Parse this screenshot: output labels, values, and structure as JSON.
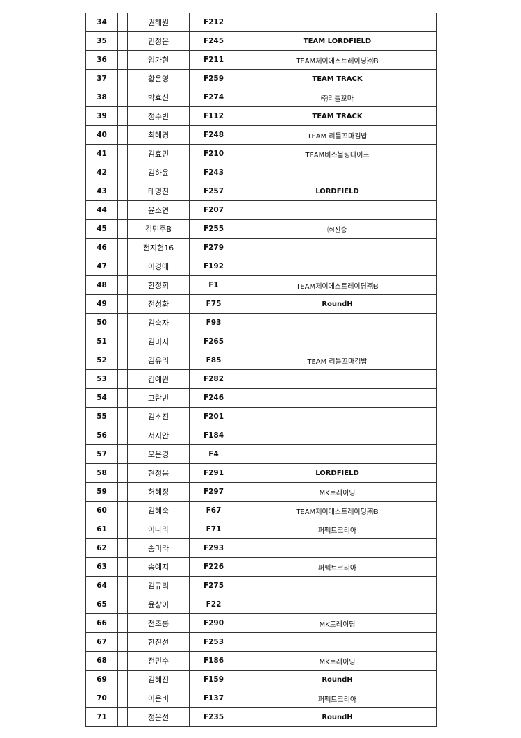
{
  "rows": [
    {
      "no": "34",
      "name": "권해원",
      "code": "F212",
      "team": ""
    },
    {
      "no": "35",
      "name": "민정은",
      "code": "F245",
      "team": "TEAM LORDFIELD"
    },
    {
      "no": "36",
      "name": "임가현",
      "code": "F211",
      "team": "TEAM제이에스트레이딩㈜B"
    },
    {
      "no": "37",
      "name": "황은영",
      "code": "F259",
      "team": "TEAM TRACK"
    },
    {
      "no": "38",
      "name": "박효신",
      "code": "F274",
      "team": "㈜리틀꼬마"
    },
    {
      "no": "39",
      "name": "정수빈",
      "code": "F112",
      "team": "TEAM TRACK"
    },
    {
      "no": "40",
      "name": "최혜경",
      "code": "F248",
      "team": "TEAM 리틀꼬마김밥"
    },
    {
      "no": "41",
      "name": "김효민",
      "code": "F210",
      "team": "TEAM비즈볼링테이프"
    },
    {
      "no": "42",
      "name": "김하윤",
      "code": "F243",
      "team": ""
    },
    {
      "no": "43",
      "name": "태명진",
      "code": "F257",
      "team": "LORDFIELD"
    },
    {
      "no": "44",
      "name": "윤소연",
      "code": "F207",
      "team": ""
    },
    {
      "no": "45",
      "name": "김민주B",
      "code": "F255",
      "team": "㈜진승"
    },
    {
      "no": "46",
      "name": "전지현16",
      "code": "F279",
      "team": ""
    },
    {
      "no": "47",
      "name": "이경애",
      "code": "F192",
      "team": ""
    },
    {
      "no": "48",
      "name": "한정희",
      "code": "F1",
      "team": "TEAM제이에스트레이딩㈜B"
    },
    {
      "no": "49",
      "name": "전성화",
      "code": "F75",
      "team": "RoundH"
    },
    {
      "no": "50",
      "name": "김숙자",
      "code": "F93",
      "team": ""
    },
    {
      "no": "51",
      "name": "김미지",
      "code": "F265",
      "team": ""
    },
    {
      "no": "52",
      "name": "김유리",
      "code": "F85",
      "team": "TEAM 리틀꼬마김밥"
    },
    {
      "no": "53",
      "name": "김예원",
      "code": "F282",
      "team": ""
    },
    {
      "no": "54",
      "name": "고란빈",
      "code": "F246",
      "team": ""
    },
    {
      "no": "55",
      "name": "김소진",
      "code": "F201",
      "team": ""
    },
    {
      "no": "56",
      "name": "서지안",
      "code": "F184",
      "team": ""
    },
    {
      "no": "57",
      "name": "오은경",
      "code": "F4",
      "team": ""
    },
    {
      "no": "58",
      "name": "현정음",
      "code": "F291",
      "team": "LORDFIELD"
    },
    {
      "no": "59",
      "name": "허혜정",
      "code": "F297",
      "team": "MK트레이딩"
    },
    {
      "no": "60",
      "name": "김혜숙",
      "code": "F67",
      "team": "TEAM제이에스트레이딩㈜B"
    },
    {
      "no": "61",
      "name": "이나라",
      "code": "F71",
      "team": "퍼펙트코리아"
    },
    {
      "no": "62",
      "name": "송미라",
      "code": "F293",
      "team": ""
    },
    {
      "no": "63",
      "name": "송예지",
      "code": "F226",
      "team": "퍼펙트코리아"
    },
    {
      "no": "64",
      "name": "김규리",
      "code": "F275",
      "team": ""
    },
    {
      "no": "65",
      "name": "윤상이",
      "code": "F22",
      "team": ""
    },
    {
      "no": "66",
      "name": "전초롱",
      "code": "F290",
      "team": "MK트레이딩"
    },
    {
      "no": "67",
      "name": "한진선",
      "code": "F253",
      "team": ""
    },
    {
      "no": "68",
      "name": "전민수",
      "code": "F186",
      "team": "MK트레이딩"
    },
    {
      "no": "69",
      "name": "김혜진",
      "code": "F159",
      "team": "RoundH"
    },
    {
      "no": "70",
      "name": "이은비",
      "code": "F137",
      "team": "퍼펙트코리아"
    },
    {
      "no": "71",
      "name": "정은선",
      "code": "F235",
      "team": "RoundH"
    }
  ]
}
